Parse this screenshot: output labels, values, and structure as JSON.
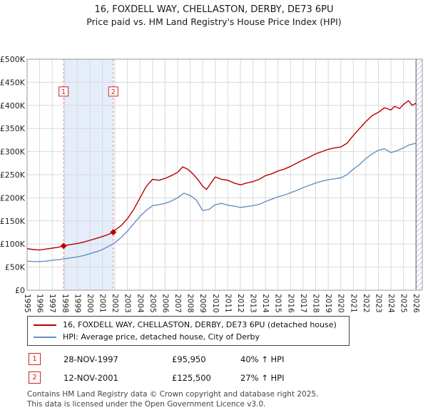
{
  "title": "16, FOXDELL WAY, CHELLASTON, DERBY, DE73 6PU",
  "subtitle": "Price paid vs. HM Land Registry's House Price Index (HPI)",
  "chart_data": {
    "type": "line",
    "x_range": [
      1995,
      2026.5
    ],
    "y_range": [
      0,
      500000
    ],
    "grid": true,
    "x_ticks": [
      1995,
      1996,
      1997,
      1998,
      1999,
      2000,
      2001,
      2002,
      2003,
      2004,
      2005,
      2006,
      2007,
      2008,
      2009,
      2010,
      2011,
      2012,
      2013,
      2014,
      2015,
      2016,
      2017,
      2018,
      2019,
      2020,
      2021,
      2022,
      2023,
      2024,
      2025,
      2026
    ],
    "y_ticks": [
      {
        "value": 0,
        "label": "£0"
      },
      {
        "value": 50000,
        "label": "£50K"
      },
      {
        "value": 100000,
        "label": "£100K"
      },
      {
        "value": 150000,
        "label": "£150K"
      },
      {
        "value": 200000,
        "label": "£200K"
      },
      {
        "value": 250000,
        "label": "£250K"
      },
      {
        "value": 300000,
        "label": "£300K"
      },
      {
        "value": 350000,
        "label": "£350K"
      },
      {
        "value": 400000,
        "label": "£400K"
      },
      {
        "value": 450000,
        "label": "£450K"
      },
      {
        "value": 500000,
        "label": "£500K"
      }
    ],
    "shaded_region": [
      1997.91,
      2001.87
    ],
    "shaded_color": "#e4edf9",
    "hatch_region": [
      2026.0,
      2026.5
    ],
    "series": [
      {
        "name": "16, FOXDELL WAY, CHELLASTON, DERBY, DE73 6PU (detached house)",
        "color": "#bb0000",
        "x": [
          1995.0,
          1995.5,
          1996.0,
          1996.5,
          1997.0,
          1997.5,
          1997.91,
          1998.5,
          1999.0,
          1999.5,
          2000.0,
          2000.5,
          2001.0,
          2001.5,
          2001.87,
          2002.0,
          2002.5,
          2003.0,
          2003.5,
          2004.0,
          2004.5,
          2005.0,
          2005.5,
          2006.0,
          2006.5,
          2007.0,
          2007.4,
          2007.8,
          2008.2,
          2008.6,
          2009.0,
          2009.3,
          2009.6,
          2010.0,
          2010.5,
          2011.0,
          2011.5,
          2012.0,
          2012.5,
          2013.0,
          2013.5,
          2014.0,
          2014.5,
          2015.0,
          2015.5,
          2016.0,
          2016.5,
          2017.0,
          2017.5,
          2018.0,
          2018.5,
          2019.0,
          2019.5,
          2020.0,
          2020.5,
          2021.0,
          2021.5,
          2022.0,
          2022.5,
          2023.0,
          2023.5,
          2024.0,
          2024.3,
          2024.7,
          2025.0,
          2025.4,
          2025.7,
          2026.0
        ],
        "values": [
          90000,
          88000,
          87000,
          89000,
          91000,
          93000,
          95950,
          99000,
          101000,
          104000,
          108000,
          112000,
          116000,
          121000,
          125500,
          130000,
          140000,
          155000,
          175000,
          200000,
          225000,
          240000,
          238000,
          242000,
          248000,
          255000,
          267000,
          262000,
          252000,
          240000,
          225000,
          218000,
          230000,
          245000,
          240000,
          238000,
          232000,
          228000,
          232000,
          235000,
          240000,
          248000,
          252000,
          258000,
          262000,
          268000,
          275000,
          282000,
          288000,
          295000,
          300000,
          305000,
          308000,
          310000,
          318000,
          335000,
          350000,
          365000,
          378000,
          385000,
          395000,
          390000,
          398000,
          393000,
          402000,
          410000,
          400000,
          405000
        ]
      },
      {
        "name": "HPI: Average price, detached house, City of Derby",
        "color": "#6590c0",
        "x": [
          1995.0,
          1995.5,
          1996.0,
          1996.5,
          1997.0,
          1997.5,
          1998.0,
          1998.5,
          1999.0,
          1999.5,
          2000.0,
          2000.5,
          2001.0,
          2001.5,
          2002.0,
          2002.5,
          2003.0,
          2003.5,
          2004.0,
          2004.5,
          2005.0,
          2005.5,
          2006.0,
          2006.5,
          2007.0,
          2007.5,
          2008.0,
          2008.5,
          2009.0,
          2009.5,
          2010.0,
          2010.5,
          2011.0,
          2011.5,
          2012.0,
          2012.5,
          2013.0,
          2013.5,
          2014.0,
          2014.5,
          2015.0,
          2015.5,
          2016.0,
          2016.5,
          2017.0,
          2017.5,
          2018.0,
          2018.5,
          2019.0,
          2019.5,
          2020.0,
          2020.5,
          2021.0,
          2021.5,
          2022.0,
          2022.5,
          2023.0,
          2023.5,
          2024.0,
          2024.5,
          2025.0,
          2025.5,
          2026.0
        ],
        "values": [
          63000,
          62000,
          62000,
          63000,
          65000,
          66000,
          68000,
          70000,
          72000,
          75000,
          79000,
          83000,
          88000,
          95000,
          103000,
          114000,
          128000,
          144000,
          160000,
          173000,
          183000,
          185000,
          188000,
          193000,
          200000,
          210000,
          205000,
          195000,
          172000,
          175000,
          185000,
          188000,
          184000,
          182000,
          179000,
          181000,
          183000,
          186000,
          192000,
          197000,
          202000,
          206000,
          211000,
          216000,
          222000,
          227000,
          232000,
          236000,
          239000,
          241000,
          243000,
          250000,
          262000,
          272000,
          285000,
          295000,
          303000,
          306000,
          298000,
          302000,
          308000,
          315000,
          318000
        ]
      }
    ],
    "sales": [
      {
        "n": "1",
        "x": 1997.91,
        "value": 95950,
        "date": "28-NOV-1997",
        "price": "£95,950",
        "hpi": "40% ↑ HPI"
      },
      {
        "n": "2",
        "x": 2001.87,
        "value": 125500,
        "date": "12-NOV-2001",
        "price": "£125,500",
        "hpi": "27% ↑ HPI"
      }
    ]
  },
  "legend": {
    "property_label": "16, FOXDELL WAY, CHELLASTON, DERBY, DE73 6PU (detached house)",
    "hpi_label": "HPI: Average price, detached house, City of Derby"
  },
  "footer": {
    "line1": "Contains HM Land Registry data © Crown copyright and database right 2025.",
    "line2": "This data is licensed under the Open Government Licence v3.0."
  }
}
